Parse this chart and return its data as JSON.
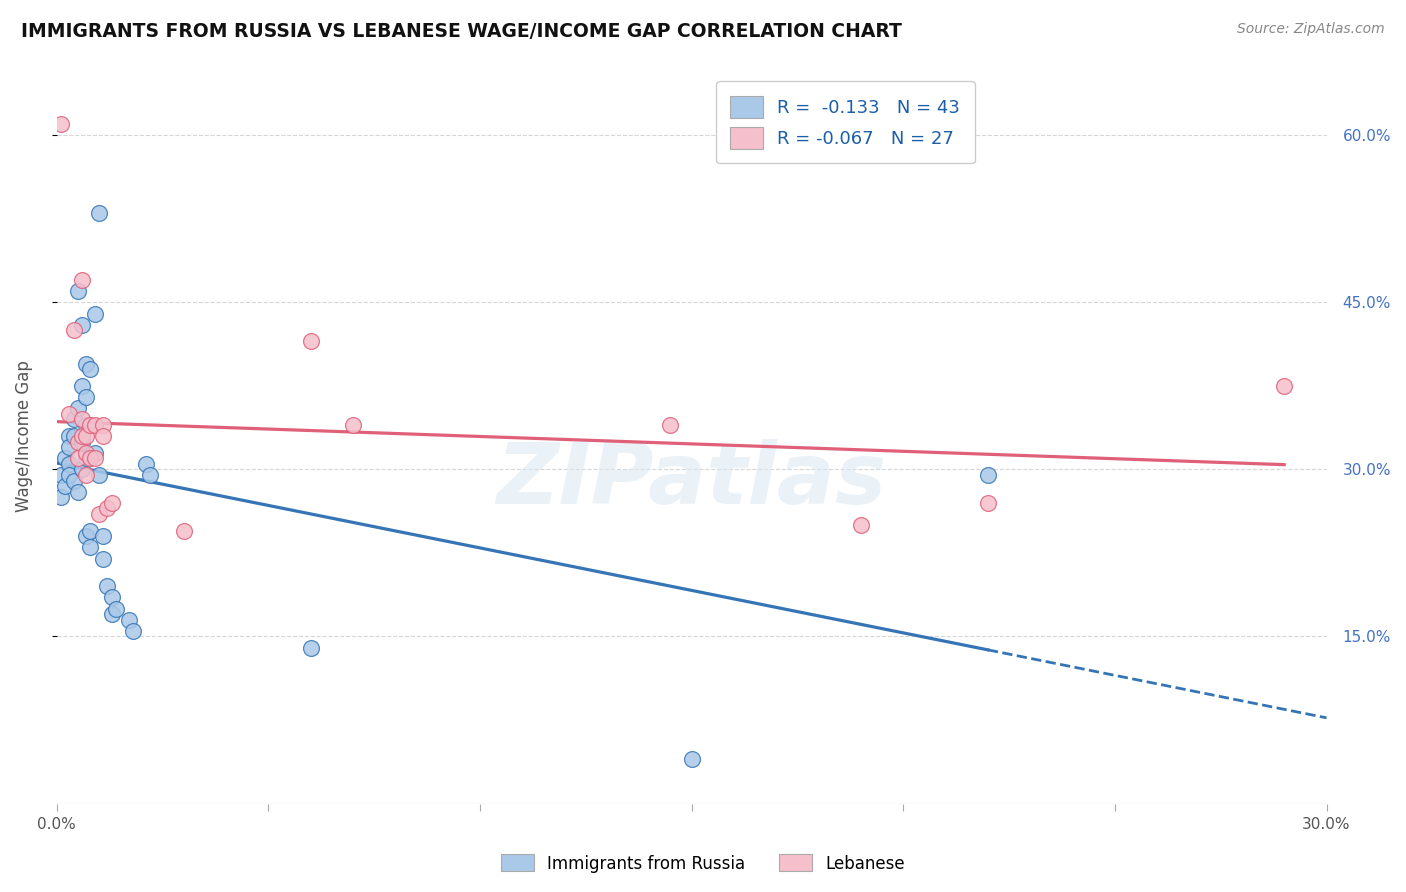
{
  "title": "IMMIGRANTS FROM RUSSIA VS LEBANESE WAGE/INCOME GAP CORRELATION CHART",
  "source": "Source: ZipAtlas.com",
  "ylabel": "Wage/Income Gap",
  "ytick_labels": [
    "15.0%",
    "30.0%",
    "45.0%",
    "60.0%"
  ],
  "ytick_values": [
    0.15,
    0.3,
    0.45,
    0.6
  ],
  "xlim": [
    0.0,
    0.3
  ],
  "ylim": [
    0.0,
    0.66
  ],
  "legend_r_russia": "-0.133",
  "legend_n_russia": "43",
  "legend_r_lebanese": "-0.067",
  "legend_n_lebanese": "27",
  "russia_color": "#aac8e8",
  "lebanese_color": "#f5bfcb",
  "russia_line_color": "#3575b5",
  "lebanese_line_color": "#e0607a",
  "russia_scatter": [
    [
      0.001,
      0.295
    ],
    [
      0.001,
      0.275
    ],
    [
      0.002,
      0.31
    ],
    [
      0.002,
      0.285
    ],
    [
      0.003,
      0.33
    ],
    [
      0.003,
      0.32
    ],
    [
      0.003,
      0.305
    ],
    [
      0.003,
      0.295
    ],
    [
      0.004,
      0.345
    ],
    [
      0.004,
      0.33
    ],
    [
      0.004,
      0.29
    ],
    [
      0.005,
      0.46
    ],
    [
      0.005,
      0.355
    ],
    [
      0.005,
      0.28
    ],
    [
      0.006,
      0.43
    ],
    [
      0.006,
      0.375
    ],
    [
      0.006,
      0.325
    ],
    [
      0.006,
      0.3
    ],
    [
      0.007,
      0.395
    ],
    [
      0.007,
      0.365
    ],
    [
      0.007,
      0.34
    ],
    [
      0.007,
      0.31
    ],
    [
      0.007,
      0.24
    ],
    [
      0.008,
      0.39
    ],
    [
      0.008,
      0.245
    ],
    [
      0.008,
      0.23
    ],
    [
      0.009,
      0.44
    ],
    [
      0.009,
      0.315
    ],
    [
      0.01,
      0.53
    ],
    [
      0.01,
      0.295
    ],
    [
      0.011,
      0.24
    ],
    [
      0.011,
      0.22
    ],
    [
      0.012,
      0.195
    ],
    [
      0.013,
      0.185
    ],
    [
      0.013,
      0.17
    ],
    [
      0.014,
      0.175
    ],
    [
      0.017,
      0.165
    ],
    [
      0.018,
      0.155
    ],
    [
      0.021,
      0.305
    ],
    [
      0.022,
      0.295
    ],
    [
      0.06,
      0.14
    ],
    [
      0.15,
      0.04
    ],
    [
      0.22,
      0.295
    ]
  ],
  "lebanese_scatter": [
    [
      0.001,
      0.61
    ],
    [
      0.003,
      0.35
    ],
    [
      0.004,
      0.425
    ],
    [
      0.005,
      0.325
    ],
    [
      0.005,
      0.31
    ],
    [
      0.006,
      0.47
    ],
    [
      0.006,
      0.345
    ],
    [
      0.006,
      0.33
    ],
    [
      0.007,
      0.33
    ],
    [
      0.007,
      0.315
    ],
    [
      0.007,
      0.295
    ],
    [
      0.008,
      0.34
    ],
    [
      0.008,
      0.31
    ],
    [
      0.009,
      0.34
    ],
    [
      0.009,
      0.31
    ],
    [
      0.01,
      0.26
    ],
    [
      0.011,
      0.34
    ],
    [
      0.011,
      0.33
    ],
    [
      0.012,
      0.265
    ],
    [
      0.013,
      0.27
    ],
    [
      0.03,
      0.245
    ],
    [
      0.06,
      0.415
    ],
    [
      0.07,
      0.34
    ],
    [
      0.145,
      0.34
    ],
    [
      0.19,
      0.25
    ],
    [
      0.22,
      0.27
    ],
    [
      0.29,
      0.375
    ]
  ],
  "background_color": "#ffffff",
  "grid_color": "#cccccc",
  "watermark": "ZIPatlas",
  "marker_size": 130
}
